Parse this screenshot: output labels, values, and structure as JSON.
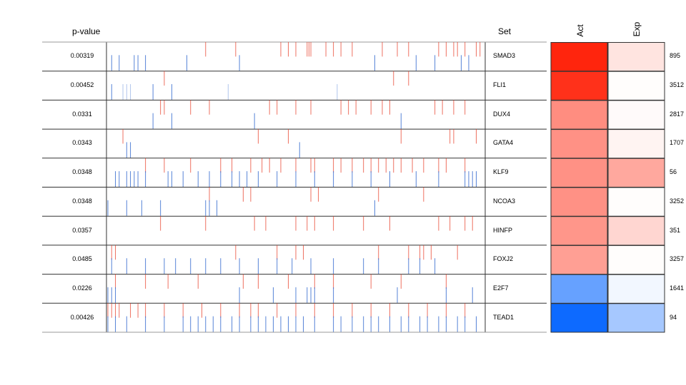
{
  "headers": {
    "pvalue": "p-value",
    "set": "Set",
    "act": "Act",
    "exp": "Exp"
  },
  "chart_data": {
    "type": "heatmap",
    "colors": {
      "up": "#e8412c",
      "down": "#3a6fd0",
      "act_high": "#ff1a00",
      "act_low": "#0062ff"
    },
    "rows": [
      {
        "set": "SMAD3",
        "pvalue": "0.00319",
        "count": "895",
        "act": 0.95,
        "exp": 0.12,
        "up": [
          0.26,
          0.34,
          0.46,
          0.48,
          0.5,
          0.53,
          0.535,
          0.54,
          0.58,
          0.6,
          0.62,
          0.65,
          0.73,
          0.77,
          0.8,
          0.88,
          0.9,
          0.92,
          0.93,
          0.95,
          0.98,
          0.99
        ],
        "down": [
          0.01,
          0.03,
          0.07,
          0.08,
          0.1,
          0.21,
          0.35,
          0.71,
          0.82,
          0.87,
          0.94,
          0.96
        ]
      },
      {
        "set": "FLI1",
        "pvalue": "0.00452",
        "count": "3512",
        "act": 0.9,
        "exp": 0.01,
        "up": [
          0.15,
          0.76,
          0.8
        ],
        "down": [
          0.01,
          0.04,
          0.05,
          0.06,
          0.12,
          0.17,
          0.32,
          0.61
        ],
        "down_light": [
          0.04,
          0.05,
          0.06,
          0.32,
          0.61
        ]
      },
      {
        "set": "DUX4",
        "pvalue": "0.0331",
        "count": "2817",
        "act": 0.5,
        "exp": 0.02,
        "up": [
          0.14,
          0.15,
          0.22,
          0.27,
          0.43,
          0.45,
          0.5,
          0.54,
          0.62,
          0.64,
          0.66,
          0.7,
          0.73,
          0.75,
          0.87,
          0.89,
          0.92,
          0.95
        ],
        "down": [
          0.12,
          0.17,
          0.39,
          0.78
        ]
      },
      {
        "set": "GATA4",
        "pvalue": "0.0343",
        "count": "1707",
        "act": 0.48,
        "exp": 0.05,
        "up": [
          0.04,
          0.4,
          0.48,
          0.78,
          0.91,
          0.92,
          0.98
        ],
        "down": [
          0.05,
          0.06,
          0.51
        ]
      },
      {
        "set": "KLF9",
        "pvalue": "0.0348",
        "count": "56",
        "act": 0.48,
        "exp": 0.38,
        "up": [
          0.1,
          0.15,
          0.22,
          0.3,
          0.33,
          0.38,
          0.41,
          0.43,
          0.46,
          0.5,
          0.54,
          0.55,
          0.6,
          0.62,
          0.65,
          0.68,
          0.7,
          0.72,
          0.74,
          0.76,
          0.78,
          0.81,
          0.84,
          0.88,
          0.9,
          0.95
        ],
        "down": [
          0.02,
          0.03,
          0.05,
          0.06,
          0.07,
          0.08,
          0.1,
          0.16,
          0.17,
          0.2,
          0.24,
          0.27,
          0.3,
          0.33,
          0.35,
          0.37,
          0.4,
          0.45,
          0.5,
          0.55,
          0.6,
          0.65,
          0.7,
          0.75,
          0.82,
          0.88,
          0.95,
          0.96,
          0.97,
          0.98
        ]
      },
      {
        "set": "NCOA3",
        "pvalue": "0.0348",
        "count": "3252",
        "act": 0.48,
        "exp": 0.01,
        "up": [
          0.27,
          0.36,
          0.38,
          0.54,
          0.56,
          0.72,
          0.84
        ],
        "down": [
          0.0,
          0.05,
          0.09,
          0.14,
          0.26,
          0.27,
          0.29,
          0.71
        ]
      },
      {
        "set": "HINFP",
        "pvalue": "0.0357",
        "count": "351",
        "act": 0.46,
        "exp": 0.18,
        "up": [
          0.14,
          0.26,
          0.39,
          0.42,
          0.5,
          0.53,
          0.55,
          0.6,
          0.68,
          0.75,
          0.88,
          0.91,
          0.95,
          0.97
        ],
        "down": []
      },
      {
        "set": "FOXJ2",
        "pvalue": "0.0485",
        "count": "3257",
        "act": 0.42,
        "exp": 0.01,
        "up": [
          0.01,
          0.02,
          0.34,
          0.45,
          0.5,
          0.52,
          0.72,
          0.8,
          0.83,
          0.84,
          0.86,
          0.93
        ],
        "down": [
          0.01,
          0.05,
          0.1,
          0.15,
          0.18,
          0.22,
          0.26,
          0.3,
          0.35,
          0.4,
          0.45,
          0.49,
          0.54,
          0.6,
          0.68,
          0.72,
          0.8,
          0.83,
          0.87
        ]
      },
      {
        "set": "E2F7",
        "pvalue": "0.0226",
        "count": "1641",
        "act": -0.6,
        "exp": -0.05,
        "up": [
          0.02,
          0.1,
          0.16,
          0.24,
          0.36,
          0.4,
          0.48,
          0.55,
          0.6,
          0.7,
          0.78,
          0.9
        ],
        "down": [
          0.0,
          0.01,
          0.02,
          0.35,
          0.44,
          0.5,
          0.53,
          0.54,
          0.55,
          0.6,
          0.77,
          0.9,
          0.97
        ]
      },
      {
        "set": "TEAD1",
        "pvalue": "0.00426",
        "count": "94",
        "act": -0.95,
        "exp": -0.35,
        "up": [
          0.0,
          0.01,
          0.02,
          0.03,
          0.06,
          0.08,
          0.1,
          0.15,
          0.2,
          0.25,
          0.3,
          0.35,
          0.38,
          0.4,
          0.45,
          0.5,
          0.55,
          0.6,
          0.65,
          0.7,
          0.75,
          0.8,
          0.85,
          0.9,
          0.95
        ],
        "down": [
          0.0,
          0.02,
          0.05,
          0.1,
          0.15,
          0.2,
          0.22,
          0.24,
          0.26,
          0.28,
          0.3,
          0.33,
          0.35,
          0.38,
          0.4,
          0.42,
          0.44,
          0.46,
          0.48,
          0.5,
          0.52,
          0.55,
          0.6,
          0.62,
          0.65,
          0.68,
          0.7,
          0.72,
          0.75,
          0.78,
          0.8,
          0.83,
          0.85,
          0.88,
          0.9,
          0.93,
          0.95,
          0.98
        ]
      }
    ]
  }
}
